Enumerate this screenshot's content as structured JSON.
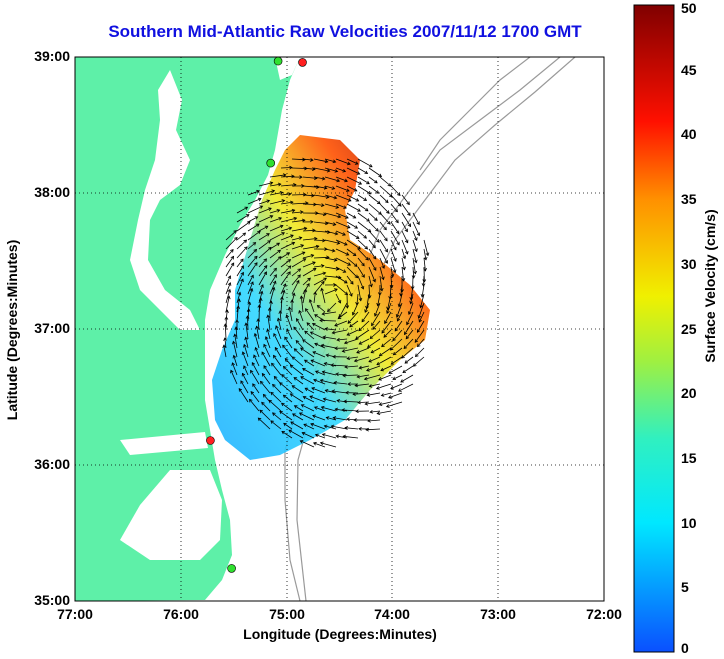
{
  "title": "Southern Mid-Atlantic Raw Velocities 2007/11/12 1700 GMT",
  "xlabel": "Longitude (Degrees:Minutes)",
  "ylabel": "Latitude (Degrees:Minutes)",
  "colorbar": {
    "label": "Surface Velocity (cm/s)",
    "ticks": [
      "0",
      "5",
      "10",
      "15",
      "20",
      "25",
      "30",
      "35",
      "40",
      "45",
      "50"
    ],
    "min": 0,
    "max": 50
  },
  "x_ticks": [
    "77:00",
    "76:00",
    "75:00",
    "74:00",
    "73:00",
    "72:00"
  ],
  "y_ticks": [
    "39:00",
    "38:00",
    "37:00",
    "36:00",
    "35:00"
  ],
  "colors": {
    "land": "#5ef0a8",
    "title": "#1010e0",
    "bathymetry": "#9a9a9a",
    "station_red": "#ff2020",
    "station_green": "#30e030"
  },
  "stations": [
    {
      "lon": -74.85,
      "lat": 38.96,
      "color": "red"
    },
    {
      "lon": -75.08,
      "lat": 38.97,
      "color": "green"
    },
    {
      "lon": -75.15,
      "lat": 38.22,
      "color": "green"
    },
    {
      "lon": -75.72,
      "lat": 36.18,
      "color": "red"
    },
    {
      "lon": -75.52,
      "lat": 35.24,
      "color": "green"
    }
  ]
}
